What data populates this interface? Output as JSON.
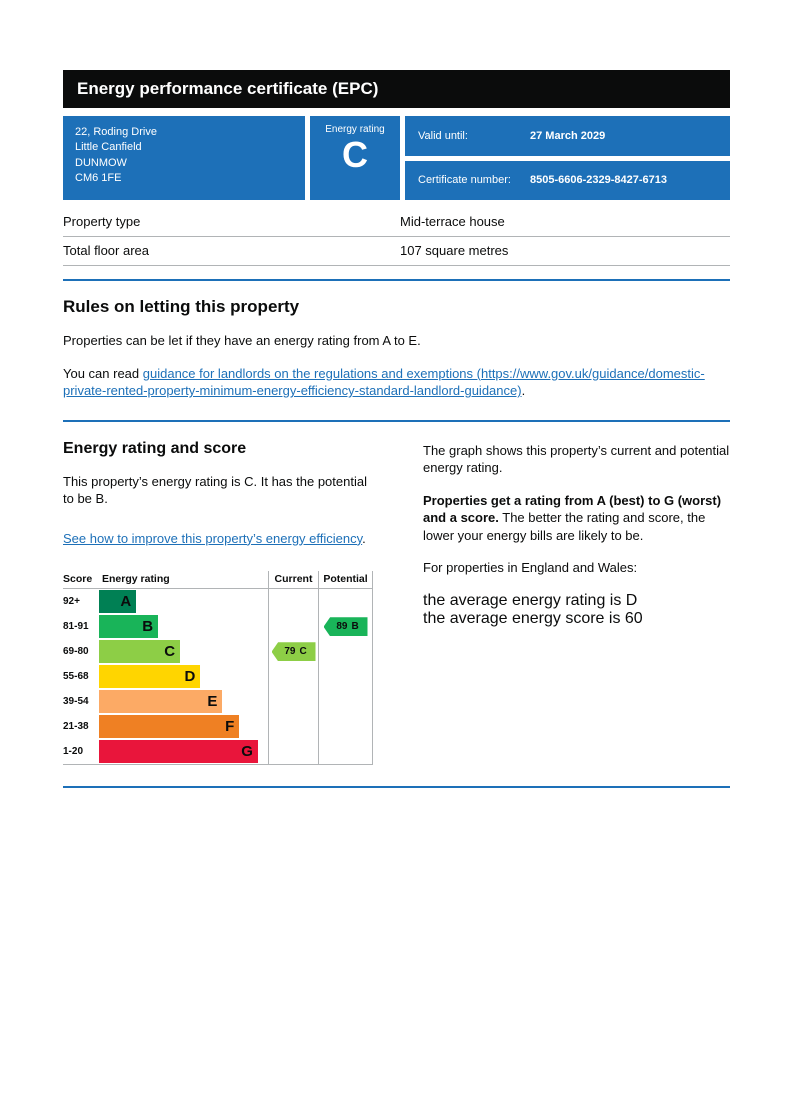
{
  "colors": {
    "govuk_blue": "#1d70b8",
    "banner_black": "#0b0c0c",
    "border_grey": "#b1b4b6",
    "link_blue": "#1d70b8"
  },
  "banner": {
    "title": "Energy performance certificate (EPC)"
  },
  "summary": {
    "address_lines": [
      "22, Roding Drive",
      "Little Canfield",
      "DUNMOW",
      "CM6 1FE"
    ],
    "rating_label": "Energy rating",
    "rating_value": "C",
    "valid_until_label": "Valid until:",
    "valid_until_value": "27 March 2029",
    "certificate_number_label": "Certificate number:",
    "certificate_number_value": "8505-6606-2329-8427-6713"
  },
  "property_details": {
    "rows": [
      {
        "label": "Property type",
        "value": "Mid-terrace house"
      },
      {
        "label": "Total floor area",
        "value": "107 square metres"
      }
    ]
  },
  "rules": {
    "heading": "Rules on letting this property",
    "paragraph": "Properties can be let if they have an energy rating from A to E.",
    "link_prefix": "You can read ",
    "link_text": "guidance for landlords on the regulations and exemptions (https://www.gov.uk/guidance/domestic-private-rented-property-minimum-energy-efficiency-standard-landlord-guidance)",
    "link_suffix": "."
  },
  "rating_section": {
    "heading": "Energy rating and score",
    "paragraph": "This property’s energy rating is C. It has the potential to be B.",
    "improve_link_text": "See how to improve this property’s energy efficiency",
    "improve_link_suffix": ".",
    "graph_intro": "The graph shows this property’s current and potential energy rating.",
    "explain_bold": "Properties get a rating from A (best) to G (worst) and a score.",
    "explain_rest": " The better the rating and score, the lower your energy bills are likely to be.",
    "region_line": "For properties in England and Wales:",
    "average_rating_line": "the average energy rating is D",
    "average_score_line": "the average energy score is 60"
  },
  "chart_data": {
    "type": "bar",
    "orientation": "horizontal",
    "title": "Energy rating and score",
    "column_headers": {
      "score": "Score",
      "rating": "Energy rating",
      "current": "Current",
      "potential": "Potential"
    },
    "bands": [
      {
        "score_range": "92+",
        "letter": "A",
        "color": "#008054",
        "width_pct": 22
      },
      {
        "score_range": "81-91",
        "letter": "B",
        "color": "#19b459",
        "width_pct": 35
      },
      {
        "score_range": "69-80",
        "letter": "C",
        "color": "#8dce46",
        "width_pct": 48
      },
      {
        "score_range": "55-68",
        "letter": "D",
        "color": "#ffd500",
        "width_pct": 60
      },
      {
        "score_range": "39-54",
        "letter": "E",
        "color": "#fcaa65",
        "width_pct": 73
      },
      {
        "score_range": "21-38",
        "letter": "F",
        "color": "#ef8023",
        "width_pct": 83
      },
      {
        "score_range": "1-20",
        "letter": "G",
        "color": "#e9153b",
        "width_pct": 94
      }
    ],
    "current": {
      "score": "79",
      "letter": "C",
      "band_index": 2,
      "color": "#8dce46"
    },
    "potential": {
      "score": "89",
      "letter": "B",
      "band_index": 1,
      "color": "#19b459"
    }
  }
}
